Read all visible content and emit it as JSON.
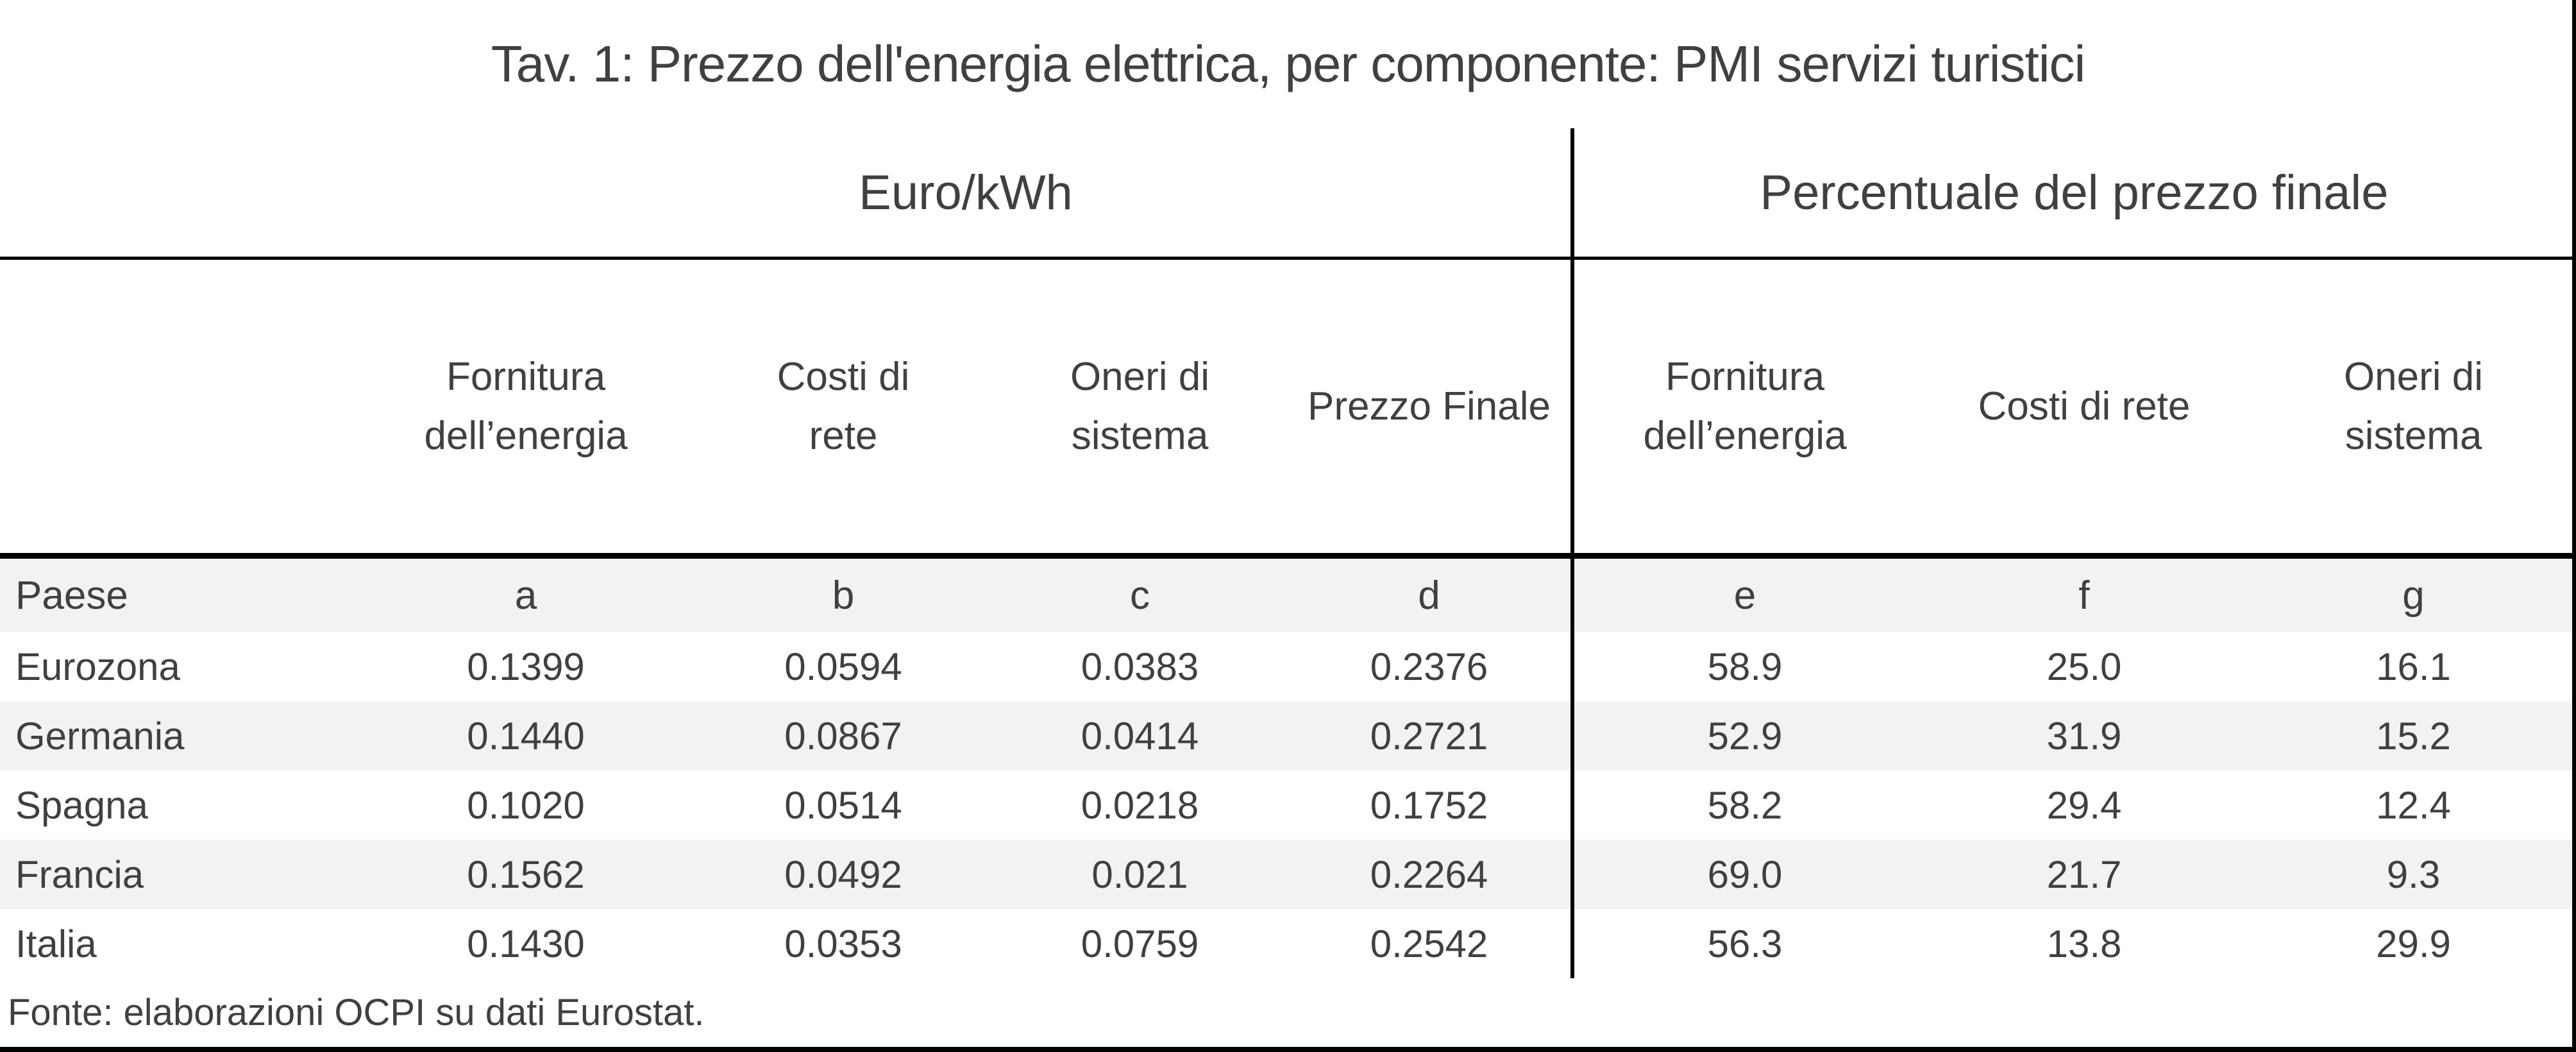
{
  "colors": {
    "text": "#404040",
    "grid_lines": "#000000",
    "row_shade": "#f2f2f2",
    "background": "#ffffff"
  },
  "table": {
    "title": "Tav. 1: Prezzo dell'energia elettrica, per componente: PMI servizi turistici",
    "group_headers": [
      "Euro/kWh",
      "Percentuale del prezzo finale"
    ],
    "column_headers": [
      "Fornitura\ndell’energia",
      "Costi di\nrete",
      "Oneri di\nsistema",
      "Prezzo Finale",
      "Fornitura\ndell’energia",
      "Costi di rete",
      "Oneri di\nsistema"
    ],
    "letter_row": {
      "label": "Paese",
      "letters": [
        "a",
        "b",
        "c",
        "d",
        "e",
        "f",
        "g"
      ]
    },
    "rows": [
      {
        "country": "Eurozona",
        "values": [
          "0.1399",
          "0.0594",
          "0.0383",
          "0.2376",
          "58.9",
          "25.0",
          "16.1"
        ]
      },
      {
        "country": "Germania",
        "values": [
          "0.1440",
          "0.0867",
          "0.0414",
          "0.2721",
          "52.9",
          "31.9",
          "15.2"
        ]
      },
      {
        "country": "Spagna",
        "values": [
          "0.1020",
          "0.0514",
          "0.0218",
          "0.1752",
          "58.2",
          "29.4",
          "12.4"
        ]
      },
      {
        "country": "Francia",
        "values": [
          "0.1562",
          "0.0492",
          "0.021",
          "0.2264",
          "69.0",
          "21.7",
          "9.3"
        ]
      },
      {
        "country": "Italia",
        "values": [
          "0.1430",
          "0.0353",
          "0.0759",
          "0.2542",
          "56.3",
          "13.8",
          "29.9"
        ]
      }
    ],
    "source": "Fonte: elaborazioni OCPI su dati Eurostat."
  },
  "chart_data": {
    "type": "table",
    "title": "Tav. 1: Prezzo dell'energia elettrica, per componente: PMI servizi turistici",
    "column_groups": [
      "Euro/kWh",
      "Percentuale del prezzo finale"
    ],
    "columns": [
      "Paese",
      "Fornitura dell'energia (a, Euro/kWh)",
      "Costi di rete (b, Euro/kWh)",
      "Oneri di sistema (c, Euro/kWh)",
      "Prezzo Finale (d, Euro/kWh)",
      "Fornitura dell'energia (e, % del prezzo finale)",
      "Costi di rete (f, % del prezzo finale)",
      "Oneri di sistema (g, % del prezzo finale)"
    ],
    "rows": [
      [
        "Eurozona",
        0.1399,
        0.0594,
        0.0383,
        0.2376,
        58.9,
        25.0,
        16.1
      ],
      [
        "Germania",
        0.144,
        0.0867,
        0.0414,
        0.2721,
        52.9,
        31.9,
        15.2
      ],
      [
        "Spagna",
        0.102,
        0.0514,
        0.0218,
        0.1752,
        58.2,
        29.4,
        12.4
      ],
      [
        "Francia",
        0.1562,
        0.0492,
        0.021,
        0.2264,
        69.0,
        21.7,
        9.3
      ],
      [
        "Italia",
        0.143,
        0.0353,
        0.0759,
        0.2542,
        56.3,
        13.8,
        29.9
      ]
    ],
    "source": "Fonte: elaborazioni OCPI su dati Eurostat."
  }
}
